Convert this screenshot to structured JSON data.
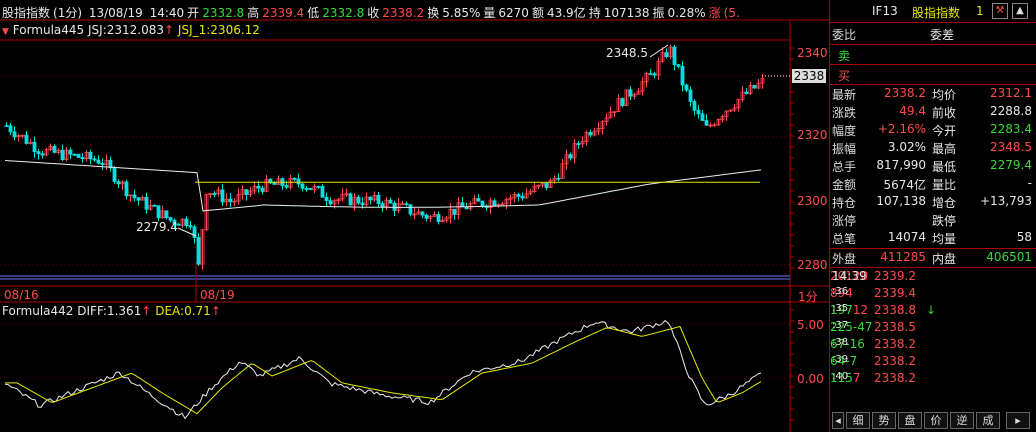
{
  "header": {
    "name": "股指指数",
    "period": "(1分)",
    "date": "13/08/19",
    "time": "14:40",
    "open_label": "开",
    "open": "2332.8",
    "high_label": "高",
    "high": "2339.4",
    "low_label": "低",
    "low": "2332.8",
    "close_label": "收",
    "close": "2338.2",
    "turnover_label": "换",
    "turnover": "5.85%",
    "volume_label": "量",
    "volume": "6270",
    "amount_label": "额",
    "amount": "43.9亿",
    "hold_label": "持",
    "hold": "107138",
    "amp_label": "振",
    "amp": "0.28%",
    "chg_label": "涨",
    "chg": "(5."
  },
  "formula_main": {
    "name": "Formula445",
    "jsj_label": "JSJ:",
    "jsj": "2312.083",
    "jsj1_label": "JSJ_1:",
    "jsj1": "2306.12"
  },
  "formula_sub": {
    "name": "Formula442",
    "diff_label": "DIFF:",
    "diff": "1.361",
    "dea_label": "DEA:",
    "dea": "0.71"
  },
  "main_axis": {
    "ticks": [
      "2340",
      "2320",
      "2300",
      "2280"
    ],
    "current": "2338",
    "high_annot": "2348.5",
    "low_annot": "2279.4"
  },
  "sub_axis": {
    "ticks": [
      "5.00",
      "0.00"
    ]
  },
  "date_axis": {
    "d1": "08/16",
    "d2": "08/19",
    "period": "1分"
  },
  "panel": {
    "code": "IF13",
    "name": "股指指数",
    "num": "1",
    "weibi_label": "委比",
    "weicha_label": "委差",
    "sell_label": "卖",
    "buy_label": "买",
    "stats": [
      {
        "l1": "最新",
        "v1": "2338.2",
        "c1": "r",
        "l2": "均价",
        "v2": "2312.1",
        "c2": "r"
      },
      {
        "l1": "涨跌",
        "v1": "49.4",
        "c1": "r",
        "l2": "前收",
        "v2": "2288.8",
        "c2": "w"
      },
      {
        "l1": "幅度",
        "v1": "+2.16%",
        "c1": "r",
        "l2": "今开",
        "v2": "2283.4",
        "c2": "g"
      },
      {
        "l1": "振幅",
        "v1": "3.02%",
        "c1": "w",
        "l2": "最高",
        "v2": "2348.5",
        "c2": "r"
      },
      {
        "l1": "总手",
        "v1": "817,990",
        "c1": "w",
        "l2": "最低",
        "v2": "2279.4",
        "c2": "g"
      },
      {
        "l1": "金额",
        "v1": "5674亿",
        "c1": "w",
        "l2": "量比",
        "v2": "-",
        "c2": "w"
      },
      {
        "l1": "持仓",
        "v1": "107,138",
        "c1": "w",
        "l2": "增仓",
        "v2": "+13,793",
        "c2": "w"
      },
      {
        "l1": "涨停",
        "v1": "",
        "c1": "w",
        "l2": "跌停",
        "v2": "",
        "c2": "w"
      },
      {
        "l1": "总笔",
        "v1": "14074",
        "c1": "w",
        "l2": "均量",
        "v2": "58",
        "c2": "w"
      }
    ],
    "outer_label": "外盘",
    "outer": "411285",
    "inner_label": "内盘",
    "inner": "406501",
    "ticks": [
      {
        "t": "14:39",
        "p": "2339.2",
        "arrow": "",
        "v": "201",
        "vc": "r",
        "d": "20",
        "dc": "r"
      },
      {
        "t": ":36",
        "p": "2339.4",
        "arrow": "",
        "v": "89",
        "vc": "r",
        "d": "4",
        "dc": "r"
      },
      {
        "t": ":35",
        "p": "2338.8",
        "arrow": "↓",
        "v": "197",
        "vc": "g",
        "d": "12",
        "dc": "r"
      },
      {
        "t": ":37",
        "p": "2338.5",
        "arrow": "",
        "v": "225",
        "vc": "g",
        "d": "-47",
        "dc": "g"
      },
      {
        "t": ":38",
        "p": "2338.2",
        "arrow": "",
        "v": "67",
        "vc": "g",
        "d": "-16",
        "dc": "g"
      },
      {
        "t": ":39",
        "p": "2338.2",
        "arrow": "",
        "v": "64",
        "vc": "g",
        "d": "-7",
        "dc": "g"
      },
      {
        "t": ":40",
        "p": "2338.2",
        "arrow": "",
        "v": "115",
        "vc": "g",
        "d": "7",
        "dc": "r"
      }
    ],
    "tabs": [
      "细",
      "势",
      "盘",
      "价",
      "逆",
      "成"
    ]
  }
}
